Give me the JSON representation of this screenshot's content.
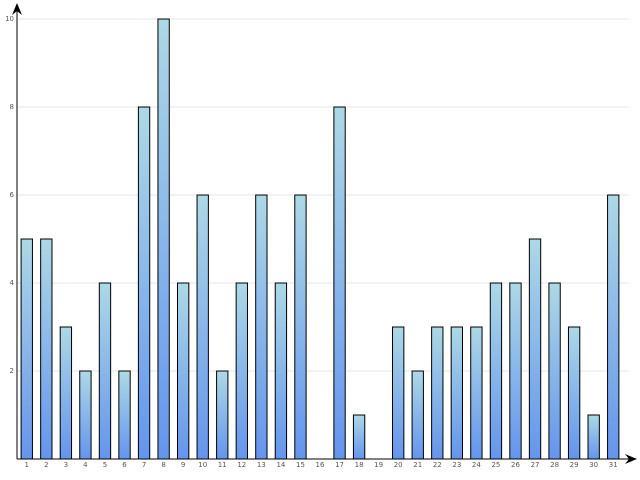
{
  "chart_data": {
    "type": "bar",
    "title": "",
    "xlabel": "",
    "ylabel": "",
    "categories": [
      "1",
      "2",
      "3",
      "4",
      "5",
      "6",
      "7",
      "8",
      "9",
      "10",
      "11",
      "12",
      "13",
      "14",
      "15",
      "16",
      "17",
      "18",
      "19",
      "20",
      "21",
      "22",
      "23",
      "24",
      "25",
      "26",
      "27",
      "28",
      "29",
      "30",
      "31"
    ],
    "values": [
      5,
      5,
      3,
      2,
      4,
      2,
      8,
      10,
      4,
      6,
      2,
      4,
      6,
      4,
      6,
      0,
      8,
      1,
      0,
      3,
      2,
      3,
      3,
      3,
      4,
      4,
      5,
      4,
      3,
      1,
      6
    ],
    "ylim": [
      0,
      10
    ],
    "yticks": [
      "2",
      "4",
      "6",
      "8",
      "10"
    ],
    "grid": true,
    "legend": "none",
    "colors": {
      "bar_top": "#add8e6",
      "bar_bottom": "#6495ed",
      "bar_stroke": "#000000",
      "grid": "#e6e6e6",
      "axis": "#000000"
    }
  }
}
